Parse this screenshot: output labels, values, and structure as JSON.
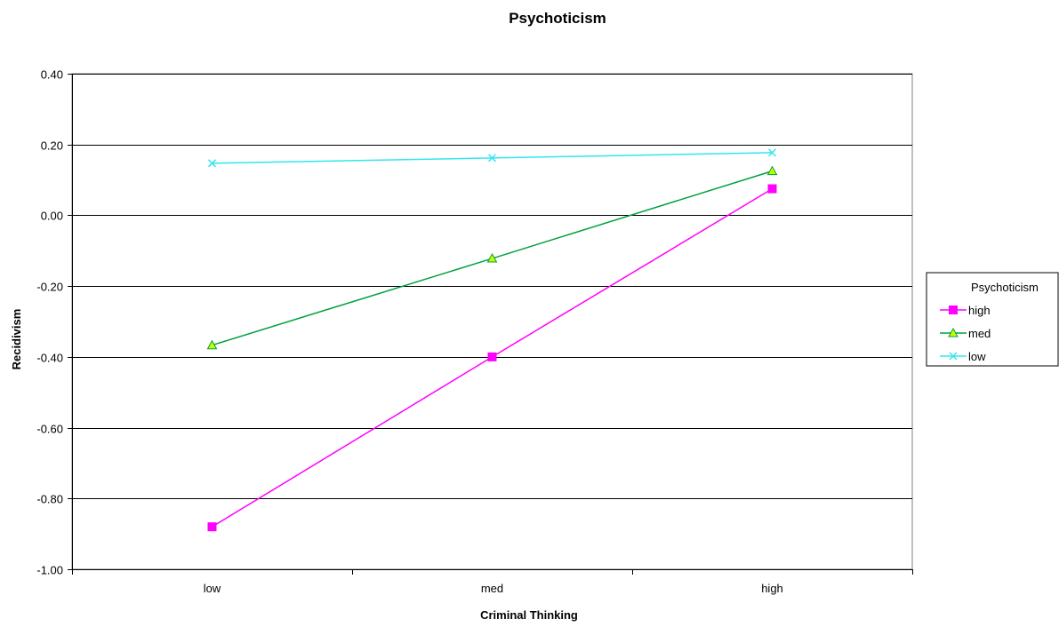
{
  "chart_data": {
    "type": "line",
    "title": "Psychoticism",
    "xlabel": "Criminal Thinking",
    "ylabel": "Recidivism",
    "categories": [
      "low",
      "med",
      "high"
    ],
    "ylim": [
      -1.0,
      0.4
    ],
    "yticks": [
      0.4,
      0.2,
      0.0,
      -0.2,
      -0.4,
      -0.6,
      -0.8,
      -1.0
    ],
    "ytick_labels": [
      "0.40",
      "0.20",
      "0.00",
      "-0.20",
      "-0.40",
      "-0.60",
      "-0.80",
      "-1.00"
    ],
    "grid": true,
    "legend": {
      "title": "Psychoticism",
      "position": "right"
    },
    "series": [
      {
        "name": "high",
        "values": [
          -0.88,
          -0.4,
          0.075
        ],
        "color": "#ff00ff",
        "marker": "square"
      },
      {
        "name": "med",
        "values": [
          -0.367,
          -0.122,
          0.125
        ],
        "color": "#00a040",
        "marker": "triangle",
        "marker_fill": "#ccff00"
      },
      {
        "name": "low",
        "values": [
          0.147,
          0.162,
          0.177
        ],
        "color": "#33e6f0",
        "marker": "x"
      }
    ]
  }
}
